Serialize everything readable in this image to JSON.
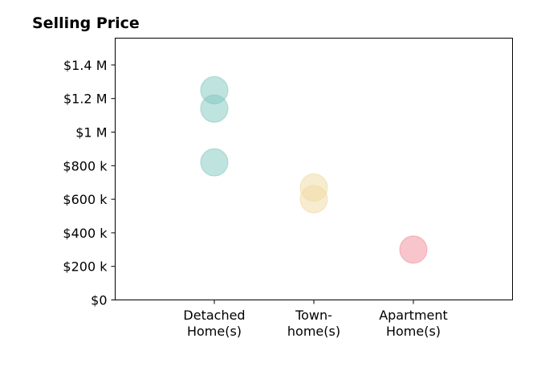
{
  "chart_data": {
    "type": "scatter",
    "title": "Selling Price",
    "xlabel": "",
    "ylabel": "",
    "categories": [
      [
        "Detached",
        "Home(s)"
      ],
      [
        "Town-",
        "home(s)"
      ],
      [
        "Apartment",
        "Home(s)"
      ]
    ],
    "ylim": [
      0,
      1560000
    ],
    "yticks": [
      {
        "value": 0,
        "label": "$0"
      },
      {
        "value": 200000,
        "label": "$200 k"
      },
      {
        "value": 400000,
        "label": "$400 k"
      },
      {
        "value": 600000,
        "label": "$600 k"
      },
      {
        "value": 800000,
        "label": "$800 k"
      },
      {
        "value": 1000000,
        "label": "$1 M"
      },
      {
        "value": 1200000,
        "label": "$1.2 M"
      },
      {
        "value": 1400000,
        "label": "$1.4 M"
      }
    ],
    "grid": false,
    "series": [
      {
        "category_index": 0,
        "color": "#7fc8be",
        "values": [
          1250000,
          1140000,
          820000
        ]
      },
      {
        "category_index": 1,
        "color": "#f0d9a0",
        "values": [
          670000,
          600000
        ]
      },
      {
        "category_index": 2,
        "color": "#f08c98",
        "values": [
          300000
        ]
      }
    ]
  }
}
